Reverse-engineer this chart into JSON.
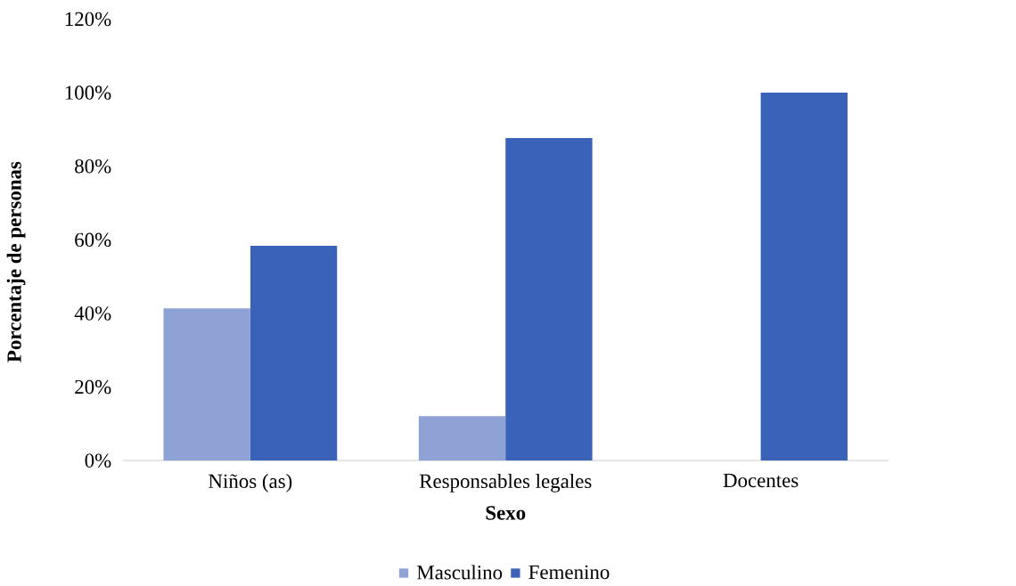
{
  "chart_data": {
    "type": "bar",
    "xlabel": "Sexo",
    "ylabel": "Porcentaje de personas",
    "categories": [
      "Niños (as)",
      "Responsables legales",
      "Docentes"
    ],
    "series": [
      {
        "name": "Masculino",
        "color": "#8fa2d6",
        "values": [
          41.4,
          12.1,
          0
        ]
      },
      {
        "name": "Femenino",
        "color": "#3a62b8",
        "values": [
          58.4,
          87.7,
          100
        ]
      }
    ],
    "ylim": [
      0,
      120
    ],
    "yticks": [
      {
        "value": 0,
        "label": "0%"
      },
      {
        "value": 20,
        "label": "20%"
      },
      {
        "value": 40,
        "label": "40%"
      },
      {
        "value": 60,
        "label": "60%"
      },
      {
        "value": 80,
        "label": "80%"
      },
      {
        "value": 100,
        "label": "100%"
      },
      {
        "value": 120,
        "label": "120%"
      }
    ],
    "legend": "bottom"
  }
}
